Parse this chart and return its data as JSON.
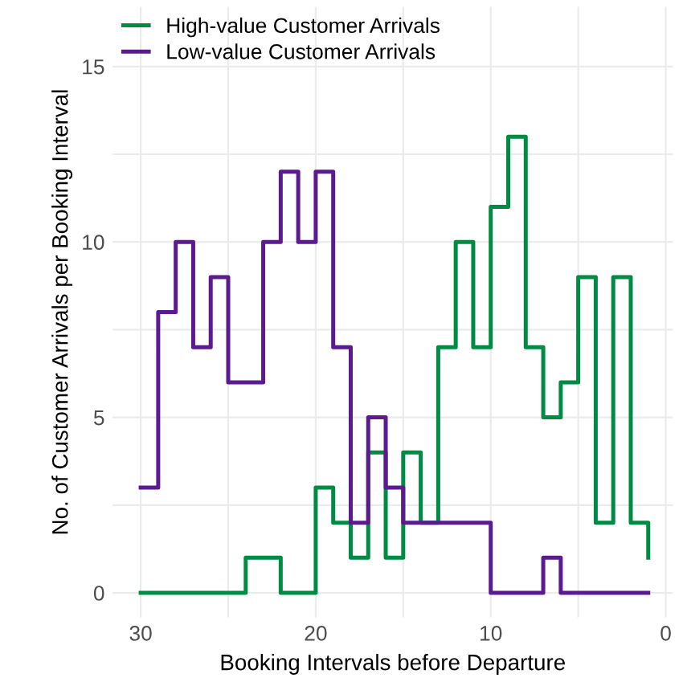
{
  "chart_data": {
    "type": "step",
    "xlabel": "Booking Intervals before Departure",
    "ylabel": "No. of Customer Arrivals per Booking Interval",
    "x": [
      30,
      29,
      28,
      27,
      26,
      25,
      24,
      23,
      22,
      21,
      20,
      19,
      18,
      17,
      16,
      15,
      14,
      13,
      12,
      11,
      10,
      9,
      8,
      7,
      6,
      5,
      4,
      3,
      2,
      1
    ],
    "series": [
      {
        "name": "High-value Customer Arrivals",
        "color": "#008b45",
        "values": [
          0,
          0,
          0,
          0,
          0,
          0,
          1,
          1,
          0,
          0,
          3,
          2,
          1,
          4,
          1,
          4,
          2,
          7,
          10,
          7,
          11,
          13,
          7,
          5,
          6,
          9,
          2,
          9,
          2,
          1
        ]
      },
      {
        "name": "Low-value Customer Arrivals",
        "color": "#5b1a8e",
        "values": [
          3,
          8,
          10,
          7,
          9,
          6,
          6,
          10,
          12,
          10,
          12,
          7,
          2,
          5,
          3,
          2,
          2,
          2,
          2,
          2,
          0,
          0,
          0,
          1,
          0,
          0,
          0,
          0,
          0,
          0
        ]
      }
    ],
    "xlim": [
      31.6,
      -0.4
    ],
    "ylim": [
      -0.7,
      16.7
    ],
    "xticks": [
      30,
      {
        "value": 25,
        "label": null
      },
      20,
      {
        "value": 15,
        "label": null
      },
      10,
      {
        "value": 5,
        "label": null
      },
      0
    ],
    "yticks": [
      0,
      {
        "value": 2.5,
        "label": null
      },
      5,
      {
        "value": 7.5,
        "label": null
      },
      10,
      {
        "value": 12.5,
        "label": null
      },
      15
    ],
    "grid": true,
    "legend": "top left",
    "line_style": "solid",
    "marker": "none"
  }
}
